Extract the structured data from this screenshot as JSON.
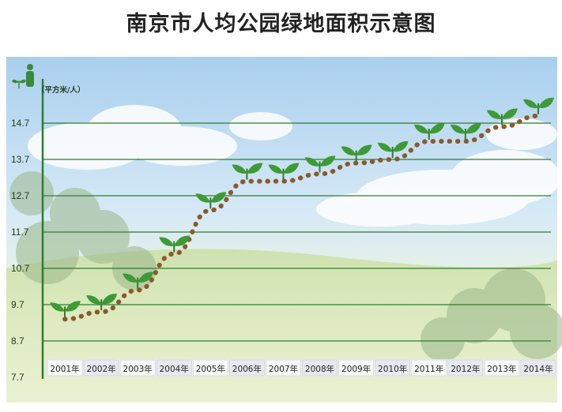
{
  "page_title": "南京市人均公园绿地面积示意图",
  "chart_data": {
    "type": "line",
    "title": "南京市人均公园绿地面积示意图",
    "ylabel": "（平方米/人）",
    "xlabel": "",
    "categories": [
      "2001年",
      "2002年",
      "2003年",
      "2004年",
      "2005年",
      "2006年",
      "2007年",
      "2008年",
      "2009年",
      "2010年",
      "2011年",
      "2012年",
      "2013年",
      "2014年"
    ],
    "values": [
      9.3,
      9.5,
      10.1,
      11.1,
      12.3,
      13.1,
      13.1,
      13.3,
      13.6,
      13.7,
      14.2,
      14.2,
      14.6,
      14.9
    ],
    "y_ticks": [
      "7.7",
      "8.7",
      "9.7",
      "10.7",
      "11.7",
      "12.7",
      "13.7",
      "14.7"
    ],
    "ylim": [
      7.7,
      15.7
    ],
    "grid": true,
    "line_style": "brown dotted path with leaf sprouts",
    "colors": {
      "grid": "#2e7d32",
      "line": "#8b5a2b",
      "leaf": "#3e9a35",
      "sky_top": "#b7d8f1",
      "ground": "#cfe0a6"
    },
    "icons": [
      "person-icon",
      "sprout-icon"
    ]
  }
}
